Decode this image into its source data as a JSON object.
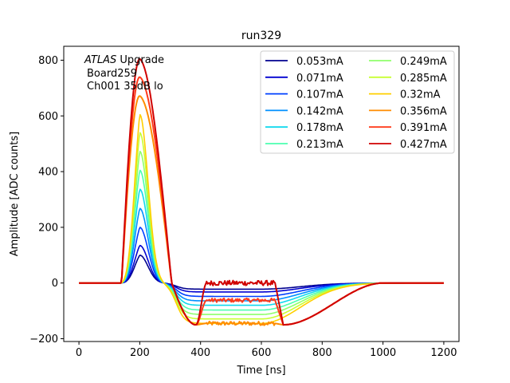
{
  "chart_data": {
    "type": "line",
    "title": "run329",
    "xlabel": "Time [ns]",
    "ylabel": "Amplitude [ADC counts]",
    "xlim": [
      -50,
      1250
    ],
    "ylim": [
      -210,
      850
    ],
    "xticks": [
      0,
      200,
      400,
      600,
      800,
      1000,
      1200
    ],
    "yticks": [
      -200,
      0,
      200,
      400,
      600,
      800
    ],
    "grid": false,
    "legend_position": "top-right",
    "legend_columns": 2,
    "annotation": {
      "italic": "ATLAS",
      "rest": " Upgrade",
      "line2": "Board259",
      "line3": "Ch001 35dB lo"
    },
    "series": [
      {
        "name": "0.053mA",
        "color": "#00008f",
        "peak": 100,
        "under": -22,
        "saturated": false
      },
      {
        "name": "0.071mA",
        "color": "#0000d0",
        "peak": 135,
        "under": -32,
        "saturated": false
      },
      {
        "name": "0.107mA",
        "color": "#0040ff",
        "peak": 200,
        "under": -48,
        "saturated": false
      },
      {
        "name": "0.142mA",
        "color": "#0090ff",
        "peak": 268,
        "under": -64,
        "saturated": false
      },
      {
        "name": "0.178mA",
        "color": "#10d8ee",
        "peak": 337,
        "under": -80,
        "saturated": false
      },
      {
        "name": "0.213mA",
        "color": "#4cffb0",
        "peak": 405,
        "under": -97,
        "saturated": false
      },
      {
        "name": "0.249mA",
        "color": "#8fff6c",
        "peak": 473,
        "under": -113,
        "saturated": false
      },
      {
        "name": "0.285mA",
        "color": "#c8ff33",
        "peak": 540,
        "under": -129,
        "saturated": false
      },
      {
        "name": "0.32mA",
        "color": "#ffcf00",
        "peak": 605,
        "under": -145,
        "saturated": false
      },
      {
        "name": "0.356mA",
        "color": "#ff8c00",
        "peak": 672,
        "under": -145,
        "saturated": true,
        "floor": -145
      },
      {
        "name": "0.391mA",
        "color": "#ff3a1a",
        "peak": 740,
        "under": -145,
        "saturated": true,
        "floor": -62
      },
      {
        "name": "0.427mA",
        "color": "#d00000",
        "peak": 805,
        "under": -145,
        "saturated": true,
        "floor": 0
      }
    ]
  }
}
